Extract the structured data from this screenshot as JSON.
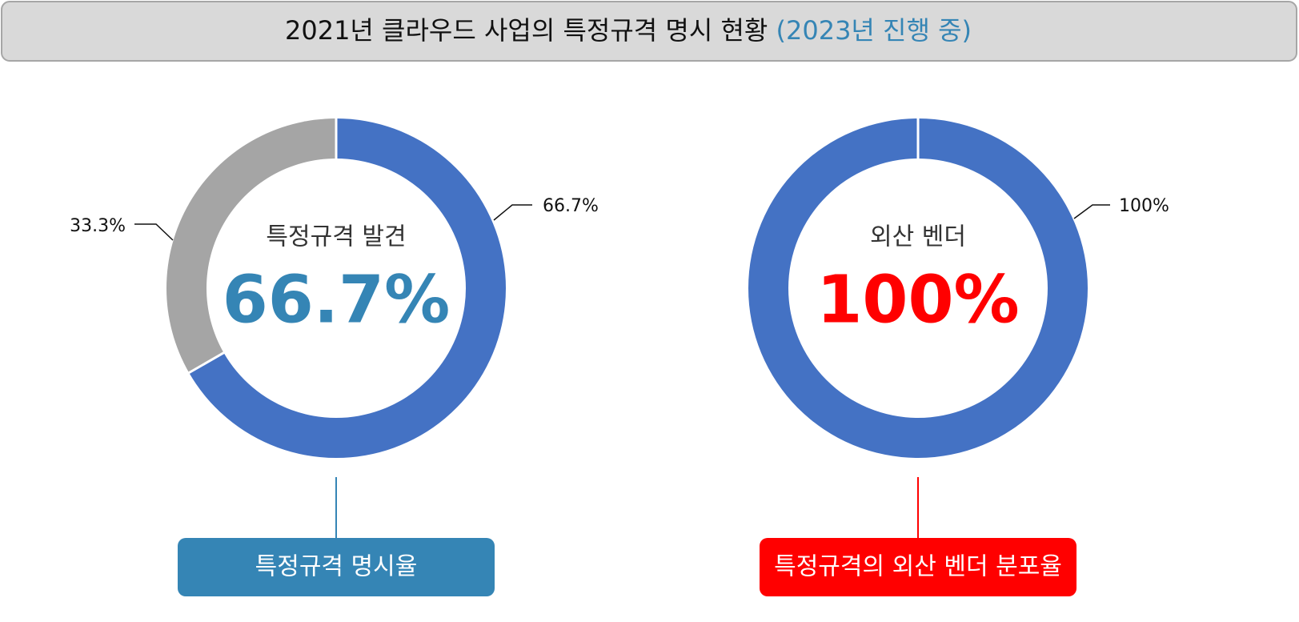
{
  "header": {
    "title": "2021년 클라우드 사업의 특정규격 명시 현황",
    "subtitle": "(2023년 진행 중)"
  },
  "chart_data": [
    {
      "type": "pie",
      "donut": true,
      "title": "특정규격 발견",
      "values": [
        66.7,
        33.3
      ],
      "value_labels": [
        "66.7%",
        "33.3%"
      ],
      "colors": [
        "#4472c4",
        "#a5a5a5"
      ],
      "highlight_color": "#3585b5",
      "caption": "특정규격 명시율"
    },
    {
      "type": "pie",
      "donut": true,
      "title": "외산 벤더",
      "values": [
        100
      ],
      "value_labels": [
        "100%"
      ],
      "colors": [
        "#4472c4"
      ],
      "highlight_color": "#ff0000",
      "caption": "특정규격의 외산 벤더 분포율"
    }
  ]
}
